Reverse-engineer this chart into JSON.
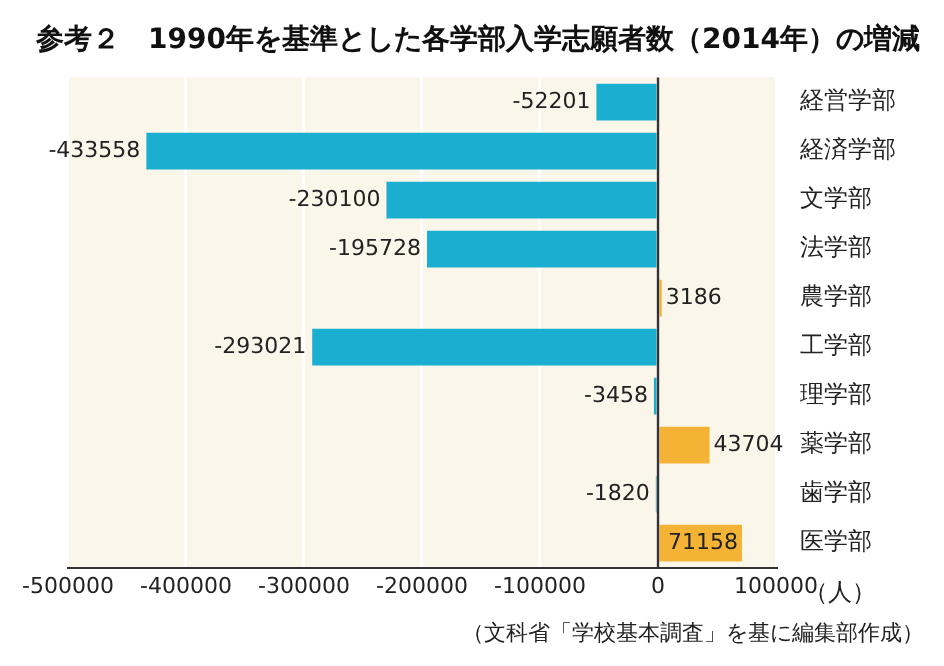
{
  "chart_data": {
    "type": "bar",
    "orientation": "horizontal",
    "title": "参考２　1990年を基準とした各学部入学志願者数（2014年）の増減",
    "xlabel": "（人）",
    "categories": [
      "経営学部",
      "経済学部",
      "文学部",
      "法学部",
      "農学部",
      "工学部",
      "理学部",
      "薬学部",
      "歯学部",
      "医学部"
    ],
    "values": [
      -52201,
      -433558,
      -230100,
      -195728,
      3186,
      -293021,
      -3458,
      43704,
      -1820,
      71158
    ],
    "colors": [
      "#1aafd0",
      "#1aafd0",
      "#1aafd0",
      "#1aafd0",
      "#f5b335",
      "#1aafd0",
      "#1aafd0",
      "#f5b335",
      "#1aafd0",
      "#f5b335"
    ],
    "xlim": [
      -500000,
      100000
    ],
    "xticks": [
      -500000,
      -400000,
      -300000,
      -200000,
      -100000,
      0,
      100000
    ],
    "grid": "x",
    "data_labels": true,
    "legend": false,
    "annotations": [
      "（文科省「学校基本調査」を基に編集部作成）"
    ]
  }
}
